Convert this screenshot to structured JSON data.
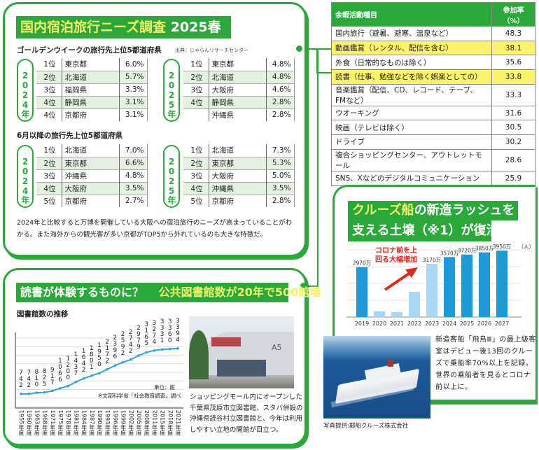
{
  "travel": {
    "title_main": "国内宿泊旅行ニーズ調査",
    "title_year": "2025春",
    "gw_heading": "ゴールデンウイークの旅行先上位5都道府県",
    "source": "出典：じゃらんリサーチセンター",
    "june_heading": "6月以降の旅行先上位5都道府県",
    "year_2024": "2024年",
    "year_2025": "2025年",
    "gw_2024": [
      {
        "rank": "1位",
        "pref": "東京都",
        "pct": "6.0%"
      },
      {
        "rank": "2位",
        "pref": "北海道",
        "pct": "5.7%"
      },
      {
        "rank": "3位",
        "pref": "福岡県",
        "pct": "3.3%"
      },
      {
        "rank": "4位",
        "pref": "静岡県",
        "pct": "3.1%"
      },
      {
        "rank": "4位",
        "pref": "京都府",
        "pct": "3.1%"
      }
    ],
    "gw_2025": [
      {
        "rank": "1位",
        "pref": "東京都",
        "pct": "4.8%"
      },
      {
        "rank": "2位",
        "pref": "北海道",
        "pct": "4.8%"
      },
      {
        "rank": "3位",
        "pref": "大阪府",
        "pct": "4.6%"
      },
      {
        "rank": "4位",
        "pref": "静岡県",
        "pct": "2.8%"
      },
      {
        "rank": "",
        "pref": "沖縄県",
        "pct": "2.8%"
      }
    ],
    "june_2024": [
      {
        "rank": "1位",
        "pref": "北海道",
        "pct": "7.0%"
      },
      {
        "rank": "2位",
        "pref": "東京都",
        "pct": "6.6%"
      },
      {
        "rank": "3位",
        "pref": "沖縄県",
        "pct": "4.8%"
      },
      {
        "rank": "4位",
        "pref": "大阪府",
        "pct": "3.5%"
      },
      {
        "rank": "5位",
        "pref": "京都府",
        "pct": "2.7%"
      }
    ],
    "june_2025": [
      {
        "rank": "1位",
        "pref": "北海道",
        "pct": "7.3%"
      },
      {
        "rank": "2位",
        "pref": "東京都",
        "pct": "5.3%"
      },
      {
        "rank": "3位",
        "pref": "大阪府",
        "pct": "5.0%"
      },
      {
        "rank": "4位",
        "pref": "沖縄県",
        "pct": "3.5%"
      },
      {
        "rank": "5位",
        "pref": "京都府",
        "pct": "2.8%"
      }
    ],
    "paragraph": "2024年と比較すると万博を開催している大阪への宿泊旅行のニーズが高まっていることがわかる。また海外からの観光客が多い京都がTOP5から外れているのも大きな特徴だ。"
  },
  "activities": {
    "header_item": "余暇活動種目",
    "header_rate": "参加率",
    "header_unit": "（%）",
    "rows": [
      {
        "item": "国内旅行（避暑、避寒、温泉など）",
        "rate": "48.3",
        "highlight": false
      },
      {
        "item": "動画鑑賞（レンタル、配信を含む）",
        "rate": "38.1",
        "highlight": true
      },
      {
        "item": "外食（日常的なものは除く）",
        "rate": "35.6",
        "highlight": false
      },
      {
        "item": "読書（仕事、勉強などを除く娯楽としての）",
        "rate": "33.8",
        "highlight": true
      },
      {
        "item": "音楽鑑賞（配信、CD、レコード、テープ、FMなど）",
        "rate": "33.3",
        "highlight": false
      },
      {
        "item": "ウオーキング",
        "rate": "31.6",
        "highlight": false
      },
      {
        "item": "映画（テレビは除く）",
        "rate": "30.5",
        "highlight": false
      },
      {
        "item": "ドライブ",
        "rate": "30.2",
        "highlight": false
      },
      {
        "item": "複合ショッピングセンター、アウトレットモール",
        "rate": "28.6",
        "highlight": false
      },
      {
        "item": "SNS、Xなどのデジタルコミュニケーション",
        "rate": "25.9",
        "highlight": false
      }
    ],
    "highlight_color": "#fbf36a"
  },
  "library": {
    "title_white": "読書が体験するものに？",
    "title_yellow": "公共図書館数が20年で500館増",
    "photo_caption": "ショッピングモール内にオープンした千葉県茂原市立図書館、スタバ併設の沖縄県読谷村立図書館と、今年は利用しやすい立地の開館が目立つ。"
  },
  "cruise": {
    "title_line1_yellow": "クルーズ船",
    "title_line1_white": "の新造ラッシュを",
    "title_line2": "支える土壌（※1）が復活",
    "annotation": "コロナ前を上回る大幅増加",
    "description": "新造客船「飛鳥Ⅲ」の最上級客室はデビュー後13回のクルーズで乗船率70%以上を記録。世界の乗船者を見るとコロナ前以上に。",
    "photo_credit": "写真提供:郵船クルーズ株式会社"
  },
  "colors": {
    "brand_green": "#2aa83a",
    "title_yellow": "#f3f06a",
    "line_blue": "#2fa4dc",
    "bar_dark": "#1e9ad6",
    "bar_light": "#a9d8f2",
    "arrow_red": "#e0261e"
  },
  "chart_data": [
    {
      "type": "line",
      "title": "図書館数の推移",
      "unit_note": "単位：館",
      "source_note": "※文部科学省「社会教育調査」調べ",
      "categories": [
        "1955年度",
        "1960年度",
        "1963年度",
        "1968年度",
        "1971年度",
        "1975年度",
        "1978年度",
        "1981年度",
        "1984年度",
        "1987年度",
        "1990年度",
        "1993年度",
        "1996年度",
        "1999年度",
        "2002年度",
        "2005年度",
        "2008年度",
        "2011年度",
        "2015年度",
        "2018年度",
        "2021年度"
      ],
      "values": [
        742,
        742,
        810,
        825,
        917,
        1066,
        1200,
        1437,
        1642,
        1801,
        1950,
        2172,
        2396,
        2592,
        2742,
        2979,
        3165,
        3274,
        3331,
        3360,
        3394
      ],
      "value_labels": [
        "742",
        "742",
        "810",
        "825",
        "917",
        "1066",
        "1200",
        "1437",
        "1642",
        "1801",
        "1950",
        "2172",
        "2396",
        "2592",
        "2742",
        "2979",
        "3165",
        "3274",
        "3331",
        "3360",
        "3394"
      ],
      "ylim": [
        0,
        4000
      ],
      "grid": true
    },
    {
      "type": "bar",
      "categories": [
        "2019",
        "2020",
        "2021",
        "2022",
        "2023",
        "2024",
        "2025",
        "2026",
        "2027"
      ],
      "values": [
        2970,
        350,
        300,
        1500,
        3170,
        3570,
        3720,
        3850,
        3950
      ],
      "value_labels": [
        "2970万",
        "",
        "",
        "",
        "3170万",
        "3570万",
        "3720万",
        "3850万",
        "3950万"
      ],
      "unit": "（人）",
      "ylim": [
        0,
        4000
      ],
      "grid": true
    }
  ]
}
